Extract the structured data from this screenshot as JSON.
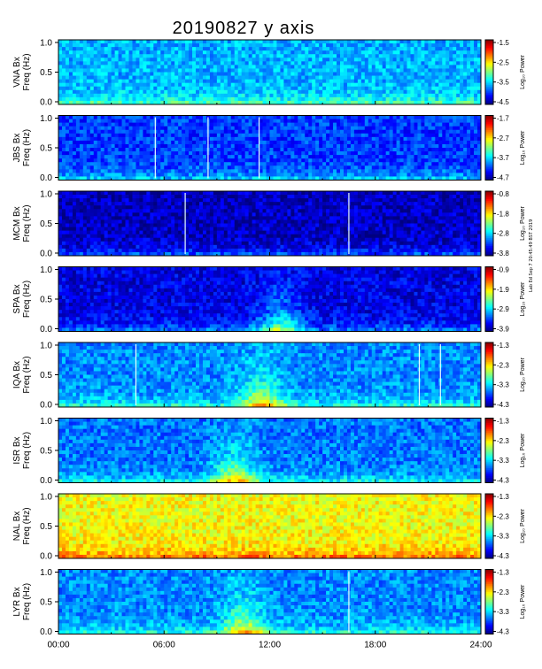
{
  "chart_data": {
    "type": "heatmap",
    "title": "20190827 y axis",
    "x_tick_labels": [
      "00:00",
      "06:00",
      "12:00",
      "18:00",
      "24:00"
    ],
    "x_range_hours": [
      0,
      24
    ],
    "y_range_hz": [
      0,
      1.0
    ],
    "y_tick_labels": [
      "0.0",
      "0.5",
      "1.0"
    ],
    "colorbar_label": "Log₁₀ Power",
    "side_note": "Lab Ed Sep 7 20:45:49 BST 2019",
    "panels": [
      {
        "station": "VNA",
        "ylabel_1": "VNA Bx",
        "ylabel_2": "Freq (Hz)",
        "cbar_ticks": [
          "-1.5",
          "-2.5",
          "-3.5",
          "-4.5"
        ],
        "bg_level": 0.3,
        "lines_h": [],
        "bright_h": []
      },
      {
        "station": "JBS",
        "ylabel_1": "JBS Bx",
        "ylabel_2": "Freq (Hz)",
        "cbar_ticks": [
          "-1.7",
          "-2.7",
          "-3.7",
          "-4.7"
        ],
        "bg_level": 0.18,
        "lines_h": [
          5.5,
          8.5,
          11.4
        ],
        "bright_h": []
      },
      {
        "station": "MCM",
        "ylabel_1": "MCM Bx",
        "ylabel_2": "Freq (Hz)",
        "cbar_ticks": [
          "-0.8",
          "-1.8",
          "-2.8",
          "-3.8"
        ],
        "bg_level": 0.06,
        "lines_h": [
          7.2,
          16.5
        ],
        "bright_h": []
      },
      {
        "station": "SPA",
        "ylabel_1": "SPA Bx",
        "ylabel_2": "Freq (Hz)",
        "cbar_ticks": [
          "-0.9",
          "-1.9",
          "-2.9",
          "-3.9"
        ],
        "bg_level": 0.1,
        "lines_h": [],
        "bright_h": [
          12.6
        ]
      },
      {
        "station": "IQA",
        "ylabel_1": "IQA Bx",
        "ylabel_2": "Freq (Hz)",
        "cbar_ticks": [
          "-1.3",
          "-2.3",
          "-3.3",
          "-4.3"
        ],
        "bg_level": 0.26,
        "lines_h": [
          4.4,
          20.5,
          21.7
        ],
        "bright_h": [
          11.5
        ]
      },
      {
        "station": "ISR",
        "ylabel_1": "ISR Bx",
        "ylabel_2": "Freq (Hz)",
        "cbar_ticks": [
          "-1.3",
          "-2.3",
          "-3.3",
          "-4.3"
        ],
        "bg_level": 0.24,
        "lines_h": [],
        "bright_h": [
          10.0
        ]
      },
      {
        "station": "NAL",
        "ylabel_1": "NAL Bx",
        "ylabel_2": "Freq (Hz)",
        "cbar_ticks": [
          "-1.3",
          "-2.3",
          "-3.3",
          "-4.3"
        ],
        "bg_level": 0.62,
        "lines_h": [],
        "bright_h": []
      },
      {
        "station": "LYR",
        "ylabel_1": "LYR Bx",
        "ylabel_2": "Freq (Hz)",
        "cbar_ticks": [
          "-1.3",
          "-2.3",
          "-3.3",
          "-4.3"
        ],
        "bg_level": 0.26,
        "lines_h": [
          16.5
        ],
        "bright_h": [
          10.5
        ]
      }
    ]
  }
}
